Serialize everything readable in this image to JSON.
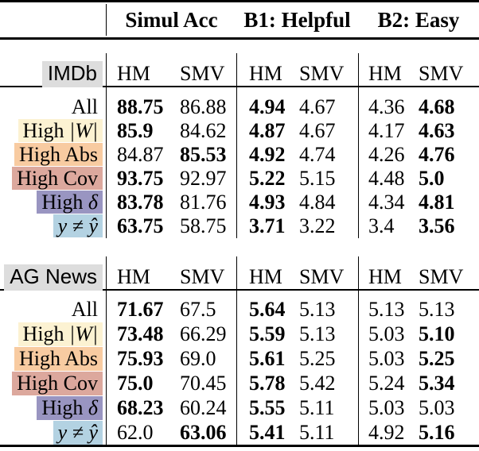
{
  "title_row": {
    "groups": [
      "Simul Acc",
      "B1: Helpful",
      "B2: Easy"
    ]
  },
  "subheader": [
    "HM",
    "SMV",
    "HM",
    "SMV",
    "HM",
    "SMV"
  ],
  "colors": {
    "section_label_bg": "#dddddd",
    "highlight_cream": "#fcf2d2",
    "highlight_peach": "#f8cba1",
    "highlight_rose": "#dca89d",
    "highlight_purple": "#9995c1",
    "highlight_blue": "#b3d2e2",
    "rule": "#000000",
    "background": "#ffffff"
  },
  "sections": [
    {
      "name": "IMDb",
      "rows": [
        {
          "label": "All",
          "math": "",
          "hl": "none",
          "cells": [
            {
              "v": "88.75",
              "w": "b"
            },
            {
              "v": "86.88",
              "w": "n"
            },
            {
              "v": "4.94",
              "w": "b"
            },
            {
              "v": "4.67",
              "w": "n"
            },
            {
              "v": "4.36",
              "w": "n"
            },
            {
              "v": "4.68",
              "w": "b"
            }
          ]
        },
        {
          "label": "High ",
          "math": "|W|",
          "hl": "cream",
          "cells": [
            {
              "v": "85.9",
              "w": "b"
            },
            {
              "v": "84.62",
              "w": "n"
            },
            {
              "v": "4.87",
              "w": "b"
            },
            {
              "v": "4.67",
              "w": "n"
            },
            {
              "v": "4.17",
              "w": "n"
            },
            {
              "v": "4.63",
              "w": "b"
            }
          ]
        },
        {
          "label": "High Abs",
          "math": "",
          "hl": "peach",
          "cells": [
            {
              "v": "84.87",
              "w": "n"
            },
            {
              "v": "85.53",
              "w": "b"
            },
            {
              "v": "4.92",
              "w": "b"
            },
            {
              "v": "4.74",
              "w": "n"
            },
            {
              "v": "4.26",
              "w": "n"
            },
            {
              "v": "4.76",
              "w": "b"
            }
          ]
        },
        {
          "label": "High Cov",
          "math": "",
          "hl": "rose",
          "cells": [
            {
              "v": "93.75",
              "w": "b"
            },
            {
              "v": "92.97",
              "w": "n"
            },
            {
              "v": "5.22",
              "w": "b"
            },
            {
              "v": "5.15",
              "w": "n"
            },
            {
              "v": "4.48",
              "w": "n"
            },
            {
              "v": "5.0",
              "w": "b"
            }
          ]
        },
        {
          "label": "High ",
          "math": "δ",
          "hl": "purple",
          "cells": [
            {
              "v": "83.78",
              "w": "b"
            },
            {
              "v": "81.76",
              "w": "n"
            },
            {
              "v": "4.93",
              "w": "b"
            },
            {
              "v": "4.84",
              "w": "n"
            },
            {
              "v": "4.34",
              "w": "n"
            },
            {
              "v": "4.81",
              "w": "b"
            }
          ]
        },
        {
          "label": "",
          "math": "y ≠ ŷ",
          "hl": "blue",
          "cells": [
            {
              "v": "63.75",
              "w": "b"
            },
            {
              "v": "58.75",
              "w": "n"
            },
            {
              "v": "3.71",
              "w": "b"
            },
            {
              "v": "3.22",
              "w": "n"
            },
            {
              "v": "3.4",
              "w": "n"
            },
            {
              "v": "3.56",
              "w": "b"
            }
          ]
        }
      ]
    },
    {
      "name": "AG News",
      "rows": [
        {
          "label": "All",
          "math": "",
          "hl": "none",
          "cells": [
            {
              "v": "71.67",
              "w": "b"
            },
            {
              "v": "67.5",
              "w": "n"
            },
            {
              "v": "5.64",
              "w": "b"
            },
            {
              "v": "5.13",
              "w": "n"
            },
            {
              "v": "5.13",
              "w": "n"
            },
            {
              "v": "5.13",
              "w": "n"
            }
          ]
        },
        {
          "label": "High ",
          "math": "|W|",
          "hl": "cream",
          "cells": [
            {
              "v": "73.48",
              "w": "b"
            },
            {
              "v": "66.29",
              "w": "n"
            },
            {
              "v": "5.59",
              "w": "b"
            },
            {
              "v": "5.13",
              "w": "n"
            },
            {
              "v": "5.03",
              "w": "n"
            },
            {
              "v": "5.10",
              "w": "b"
            }
          ]
        },
        {
          "label": "High Abs",
          "math": "",
          "hl": "peach",
          "cells": [
            {
              "v": "75.93",
              "w": "b"
            },
            {
              "v": "69.0",
              "w": "n"
            },
            {
              "v": "5.61",
              "w": "b"
            },
            {
              "v": "5.25",
              "w": "n"
            },
            {
              "v": "5.03",
              "w": "n"
            },
            {
              "v": "5.25",
              "w": "b"
            }
          ]
        },
        {
          "label": "High Cov",
          "math": "",
          "hl": "rose",
          "cells": [
            {
              "v": "75.0",
              "w": "b"
            },
            {
              "v": "70.45",
              "w": "n"
            },
            {
              "v": "5.78",
              "w": "b"
            },
            {
              "v": "5.42",
              "w": "n"
            },
            {
              "v": "5.24",
              "w": "n"
            },
            {
              "v": "5.34",
              "w": "b"
            }
          ]
        },
        {
          "label": "High ",
          "math": "δ",
          "hl": "purple",
          "cells": [
            {
              "v": "68.23",
              "w": "b"
            },
            {
              "v": "60.24",
              "w": "n"
            },
            {
              "v": "5.55",
              "w": "b"
            },
            {
              "v": "5.11",
              "w": "n"
            },
            {
              "v": "5.03",
              "w": "n"
            },
            {
              "v": "5.03",
              "w": "n"
            }
          ]
        },
        {
          "label": "",
          "math": "y ≠ ŷ",
          "hl": "blue",
          "cells": [
            {
              "v": "62.0",
              "w": "n"
            },
            {
              "v": "63.06",
              "w": "b"
            },
            {
              "v": "5.41",
              "w": "b"
            },
            {
              "v": "5.11",
              "w": "n"
            },
            {
              "v": "4.92",
              "w": "n"
            },
            {
              "v": "5.16",
              "w": "b"
            }
          ]
        }
      ]
    }
  ]
}
